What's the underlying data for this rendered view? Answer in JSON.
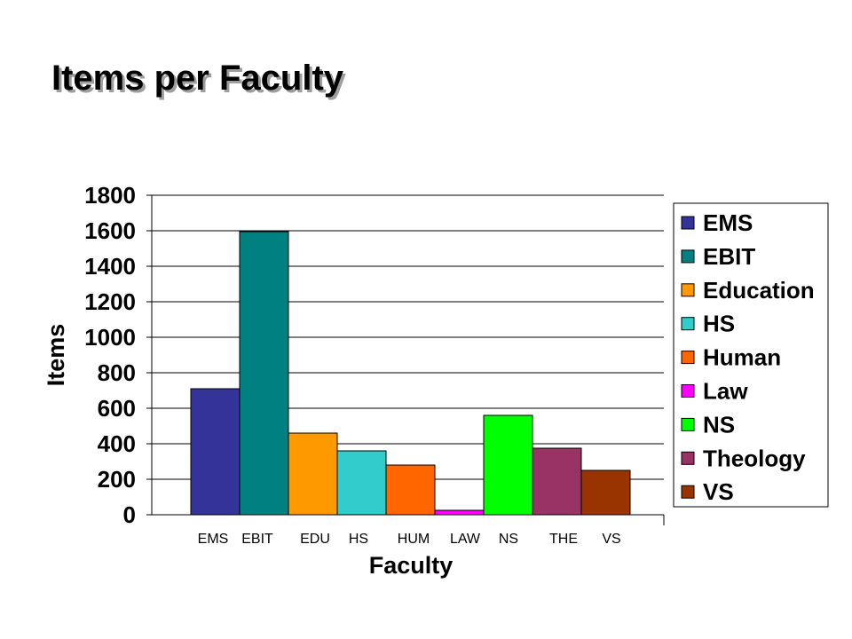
{
  "chart_data": {
    "type": "bar",
    "title": "Items per Faculty",
    "xlabel": "Faculty",
    "ylabel": "Items",
    "ylim": [
      0,
      1800
    ],
    "yticks": [
      0,
      200,
      400,
      600,
      800,
      1000,
      1200,
      1400,
      1600,
      1800
    ],
    "categories": [
      "EMS",
      "EBIT",
      "EDU",
      "HS",
      "HUM",
      "LAW",
      "NS",
      "THE",
      "VS"
    ],
    "series": [
      {
        "name": "EMS",
        "values": [
          710,
          null,
          null,
          null,
          null,
          null,
          null,
          null,
          null
        ]
      },
      {
        "name": "EBIT",
        "values": [
          null,
          1595,
          null,
          null,
          null,
          null,
          null,
          null,
          null
        ]
      },
      {
        "name": "Education",
        "values": [
          null,
          null,
          460,
          null,
          null,
          null,
          null,
          null,
          null
        ]
      },
      {
        "name": "HS",
        "values": [
          null,
          null,
          null,
          360,
          null,
          null,
          null,
          null,
          null
        ]
      },
      {
        "name": "Human",
        "values": [
          null,
          null,
          null,
          null,
          280,
          null,
          null,
          null,
          null
        ]
      },
      {
        "name": "Law",
        "values": [
          null,
          null,
          null,
          null,
          null,
          25,
          null,
          null,
          null
        ]
      },
      {
        "name": "NS",
        "values": [
          null,
          null,
          null,
          null,
          null,
          null,
          560,
          null,
          null
        ]
      },
      {
        "name": "Theology",
        "values": [
          null,
          null,
          null,
          null,
          null,
          null,
          null,
          375,
          null
        ]
      },
      {
        "name": "VS",
        "values": [
          null,
          null,
          null,
          null,
          null,
          null,
          null,
          null,
          250
        ]
      }
    ],
    "colors": [
      "#333399",
      "#008080",
      "#ff9900",
      "#33cccc",
      "#ff6600",
      "#ff00ff",
      "#00ff00",
      "#993366",
      "#993300"
    ],
    "grid": true,
    "legend_position": "right"
  }
}
